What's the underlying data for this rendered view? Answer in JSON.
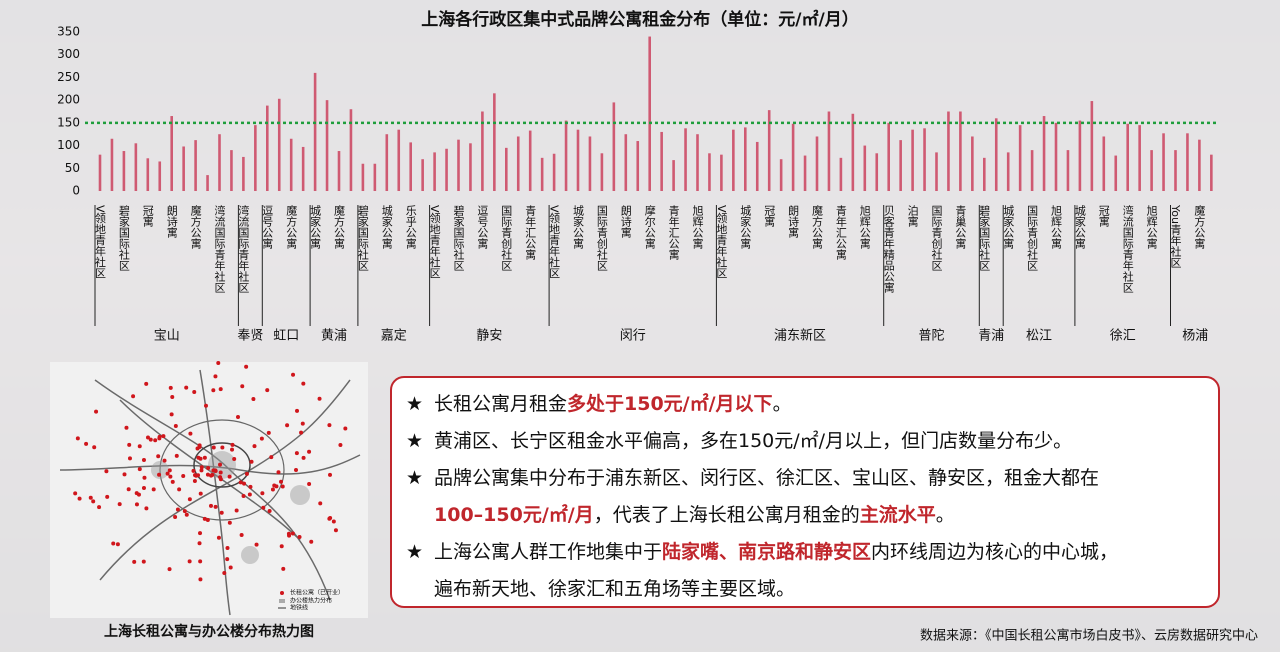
{
  "chart_data": {
    "type": "bar",
    "title": "上海各行政区集中式品牌公寓租金分布（单位：元/㎡/月）",
    "values": [
      80,
      115,
      88,
      105,
      72,
      65,
      165,
      98,
      112,
      35,
      125,
      90,
      75,
      145,
      188,
      203,
      115,
      97,
      260,
      200,
      88,
      180,
      60,
      60,
      125,
      135,
      107,
      70,
      85,
      93,
      113,
      105,
      175,
      215,
      95,
      120,
      133,
      73,
      82,
      155,
      135,
      120,
      83,
      195,
      125,
      110,
      340,
      130,
      68,
      138,
      125,
      83,
      80,
      135,
      140,
      108,
      178,
      70,
      148,
      78,
      120,
      175,
      73,
      170,
      100,
      83,
      150,
      112,
      135,
      138,
      85,
      175,
      175,
      120,
      73,
      160,
      85,
      145,
      90,
      165,
      150,
      90,
      155,
      198,
      120,
      78,
      148,
      145,
      90,
      127,
      90,
      127,
      113,
      80
    ],
    "color": "#cf5a72",
    "groups": [
      {
        "name": "宝山",
        "categories": [
          "V领地青年社区",
          "碧家国际社区",
          "冠寓",
          "朗诗寓",
          "魔方公寓",
          "湾流国际青年社区"
        ]
      },
      {
        "name": "奉贤",
        "categories": [
          "湾流国际青年社区"
        ]
      },
      {
        "name": "虹口",
        "categories": [
          "逗号公寓",
          "魔方公寓"
        ]
      },
      {
        "name": "黄浦",
        "categories": [
          "城家公寓",
          "魔方公寓"
        ]
      },
      {
        "name": "嘉定",
        "categories": [
          "碧家国际社区",
          "城家公寓",
          "乐乎公寓"
        ]
      },
      {
        "name": "静安",
        "categories": [
          "V领地青年社区",
          "碧家国际社区",
          "逗号公寓",
          "国际青创社区",
          "青年汇公寓"
        ]
      },
      {
        "name": "闵行",
        "categories": [
          "V领地青年社区",
          "城家公寓",
          "国际青创社区",
          "朗诗寓",
          "摩尔公寓",
          "青年汇公寓",
          "旭辉公寓"
        ]
      },
      {
        "name": "浦东新区",
        "categories": [
          "V领地青年社区",
          "城家公寓",
          "冠寓",
          "朗诗寓",
          "魔方公寓",
          "青年汇公寓",
          "旭辉公寓"
        ]
      },
      {
        "name": "普陀",
        "categories": [
          "贝客青年精品公寓",
          "泊寓",
          "国际青创社区",
          "青巢公寓"
        ]
      },
      {
        "name": "青浦",
        "categories": [
          "碧家国际社区"
        ]
      },
      {
        "name": "松江",
        "categories": [
          "城家公寓",
          "国际青创社区",
          "旭辉公寓"
        ]
      },
      {
        "name": "徐汇",
        "categories": [
          "城家公寓",
          "冠寓",
          "湾流国际青年社区",
          "旭辉公寓"
        ]
      },
      {
        "name": "杨浦",
        "categories": [
          "You青年社区",
          "魔方公寓"
        ]
      }
    ],
    "ylim": [
      0,
      350
    ],
    "yticks": [
      0,
      50,
      100,
      150,
      200,
      250,
      300,
      350
    ],
    "reference_line": {
      "value": 150,
      "color": "#1f9e3c"
    }
  },
  "map": {
    "caption": "上海长租公寓与办公楼分布热力图",
    "legend": [
      "长租公寓（已开业）",
      "办公楼热力分布",
      "地铁线"
    ]
  },
  "notes": [
    [
      {
        "text": "长租公寓月租金",
        "highlight": false
      },
      {
        "text": "多处于150元/㎡/月以下",
        "highlight": true
      },
      {
        "text": "。",
        "highlight": false
      }
    ],
    [
      {
        "text": "黄浦区、长宁区租金水平偏高，多在150元/㎡/月以上，但门店数量分布少。",
        "highlight": false
      }
    ],
    [
      {
        "text": "品牌公寓集中分布于浦东新区、闵行区、徐汇区、宝山区、静安区，租金大都在",
        "highlight": false
      },
      {
        "text": "100–150元/㎡/月",
        "highlight": true
      },
      {
        "text": "，代表了上海长租公寓月租金的",
        "highlight": false
      },
      {
        "text": "主流水平",
        "highlight": true
      },
      {
        "text": "。",
        "highlight": false
      }
    ],
    [
      {
        "text": "上海公寓人群工作地集中于",
        "highlight": false
      },
      {
        "text": "陆家嘴、南京路和静安区",
        "highlight": true
      },
      {
        "text": "内环线周边为核心的中心城，",
        "highlight": false
      },
      {
        "text": "遍布新天地、徐家汇和五角场等主要区域。",
        "highlight": false
      }
    ]
  ],
  "bullet": "★",
  "source": "数据来源：《中国长租公寓市场白皮书》、云房数据研究中心"
}
